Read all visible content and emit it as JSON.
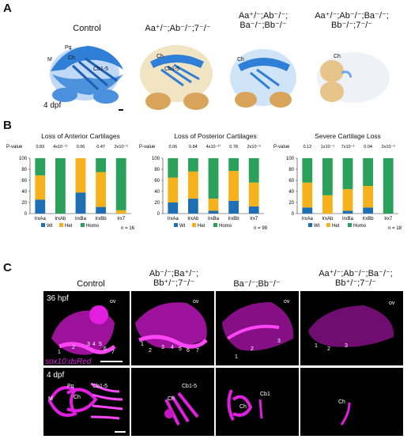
{
  "panels": {
    "A": {
      "letter": "A",
      "columns": [
        "Control",
        "Aa⁺/⁻;Ab⁻/⁻;7⁻/⁻",
        "Aa⁺/⁻;Ab⁻/⁻;\nBa⁻/⁻;Bb⁻/⁻",
        "Aa⁺/⁻;Ab⁻/⁻;Ba⁻/⁻;\nBb⁻/⁻;7⁻/⁻"
      ],
      "stage": "4 dpf",
      "labels_control": [
        "M",
        "Pq",
        "Ch",
        "Cb1-5"
      ],
      "labels_2": [
        "Ch",
        "Cb1-5"
      ],
      "labels_3": [
        "Ch"
      ],
      "labels_4": [
        "Ch"
      ]
    },
    "B": {
      "letter": "B",
      "legend": [
        "Wt",
        "Het",
        "Homo"
      ],
      "p_label": "P-value",
      "charts": [
        {
          "title": "Loss of Anterior Cartilages",
          "n": "n = 16",
          "pvalues": [
            "0.83",
            "4x10⁻¹¹",
            "0.06",
            "0.47",
            "2x10⁻⁹"
          ]
        },
        {
          "title": "Loss of Posterior Cartilages",
          "n": "n = 99",
          "pvalues": [
            "0.06",
            "0.84",
            "4x10⁻²⁷",
            "0.78",
            "2x10⁻⁹"
          ]
        },
        {
          "title": "Severe Cartilage Loss",
          "n": "n = 18",
          "pvalues": [
            "0.12",
            "1x10⁻⁴",
            "7x10⁻³",
            "0.04",
            "2x10⁻⁹"
          ]
        }
      ]
    },
    "C": {
      "letter": "C",
      "columns": [
        "Control",
        "Ab⁻/⁻;Ba⁺/⁻;\nBb⁺/⁻;7⁻/⁻",
        "Ba⁻/⁻;Bb⁻/⁻",
        "Aa⁺/⁻;Ab⁻/⁻;Ba⁻/⁻;\nBb⁺/⁻;7⁻/⁻"
      ],
      "stage_top": "36 hpf",
      "stage_bottom": "4 dpf",
      "reporter": "sox10:dsRed",
      "labels_top_control": [
        "ov",
        "1",
        "2",
        "3",
        "4",
        "5",
        "6",
        "7"
      ],
      "labels_top_2": [
        "ov",
        "1",
        "2",
        "3",
        "4",
        "5",
        "6",
        "7"
      ],
      "labels_top_3": [
        "ov",
        "1",
        "2",
        "3"
      ],
      "labels_top_4": [
        "ov",
        "1",
        "2",
        "3"
      ],
      "labels_bottom_control": [
        "M",
        "Pq",
        "Ch",
        "Cb1-5"
      ],
      "labels_bottom_2": [
        "Ch",
        "Cb1-5"
      ],
      "labels_bottom_3": [
        "Ch",
        "Cb1"
      ],
      "labels_bottom_4": [
        "Ch"
      ]
    }
  },
  "colors": {
    "wt": "#1f6fb4",
    "het": "#f5b21c",
    "homo": "#2aa05a",
    "alcian": "#2f7fd6",
    "dsred": "#e21ee0"
  },
  "chart_data": [
    {
      "type": "bar",
      "title": "Loss of Anterior Cartilages",
      "categories": [
        "IrxAa",
        "IrxAb",
        "IrxBa",
        "IrxBb",
        "Irx7"
      ],
      "ylim": [
        0,
        100
      ],
      "stacked": true,
      "series": [
        {
          "name": "Wt",
          "values": [
            25,
            0,
            38,
            12,
            0
          ]
        },
        {
          "name": "Het",
          "values": [
            44,
            0,
            62,
            63,
            6
          ]
        },
        {
          "name": "Homo",
          "values": [
            31,
            100,
            0,
            25,
            94
          ]
        }
      ]
    },
    {
      "type": "bar",
      "title": "Loss of Posterior Cartilages",
      "categories": [
        "IrxAa",
        "IrxAb",
        "IrxBa",
        "IrxBb",
        "Irx7"
      ],
      "ylim": [
        0,
        100
      ],
      "stacked": true,
      "series": [
        {
          "name": "Wt",
          "values": [
            20,
            27,
            5,
            23,
            13
          ]
        },
        {
          "name": "Het",
          "values": [
            45,
            49,
            22,
            54,
            43
          ]
        },
        {
          "name": "Homo",
          "values": [
            35,
            24,
            73,
            23,
            44
          ]
        }
      ]
    },
    {
      "type": "bar",
      "title": "Severe Cartilage Loss",
      "categories": [
        "IrxAa",
        "IrxAb",
        "IrxBa",
        "IrxBb",
        "Irx7"
      ],
      "ylim": [
        0,
        100
      ],
      "stacked": true,
      "series": [
        {
          "name": "Wt",
          "values": [
            11,
            0,
            5,
            11,
            0
          ]
        },
        {
          "name": "Het",
          "values": [
            45,
            33,
            39,
            39,
            0
          ]
        },
        {
          "name": "Homo",
          "values": [
            44,
            67,
            56,
            50,
            100
          ]
        }
      ]
    }
  ]
}
